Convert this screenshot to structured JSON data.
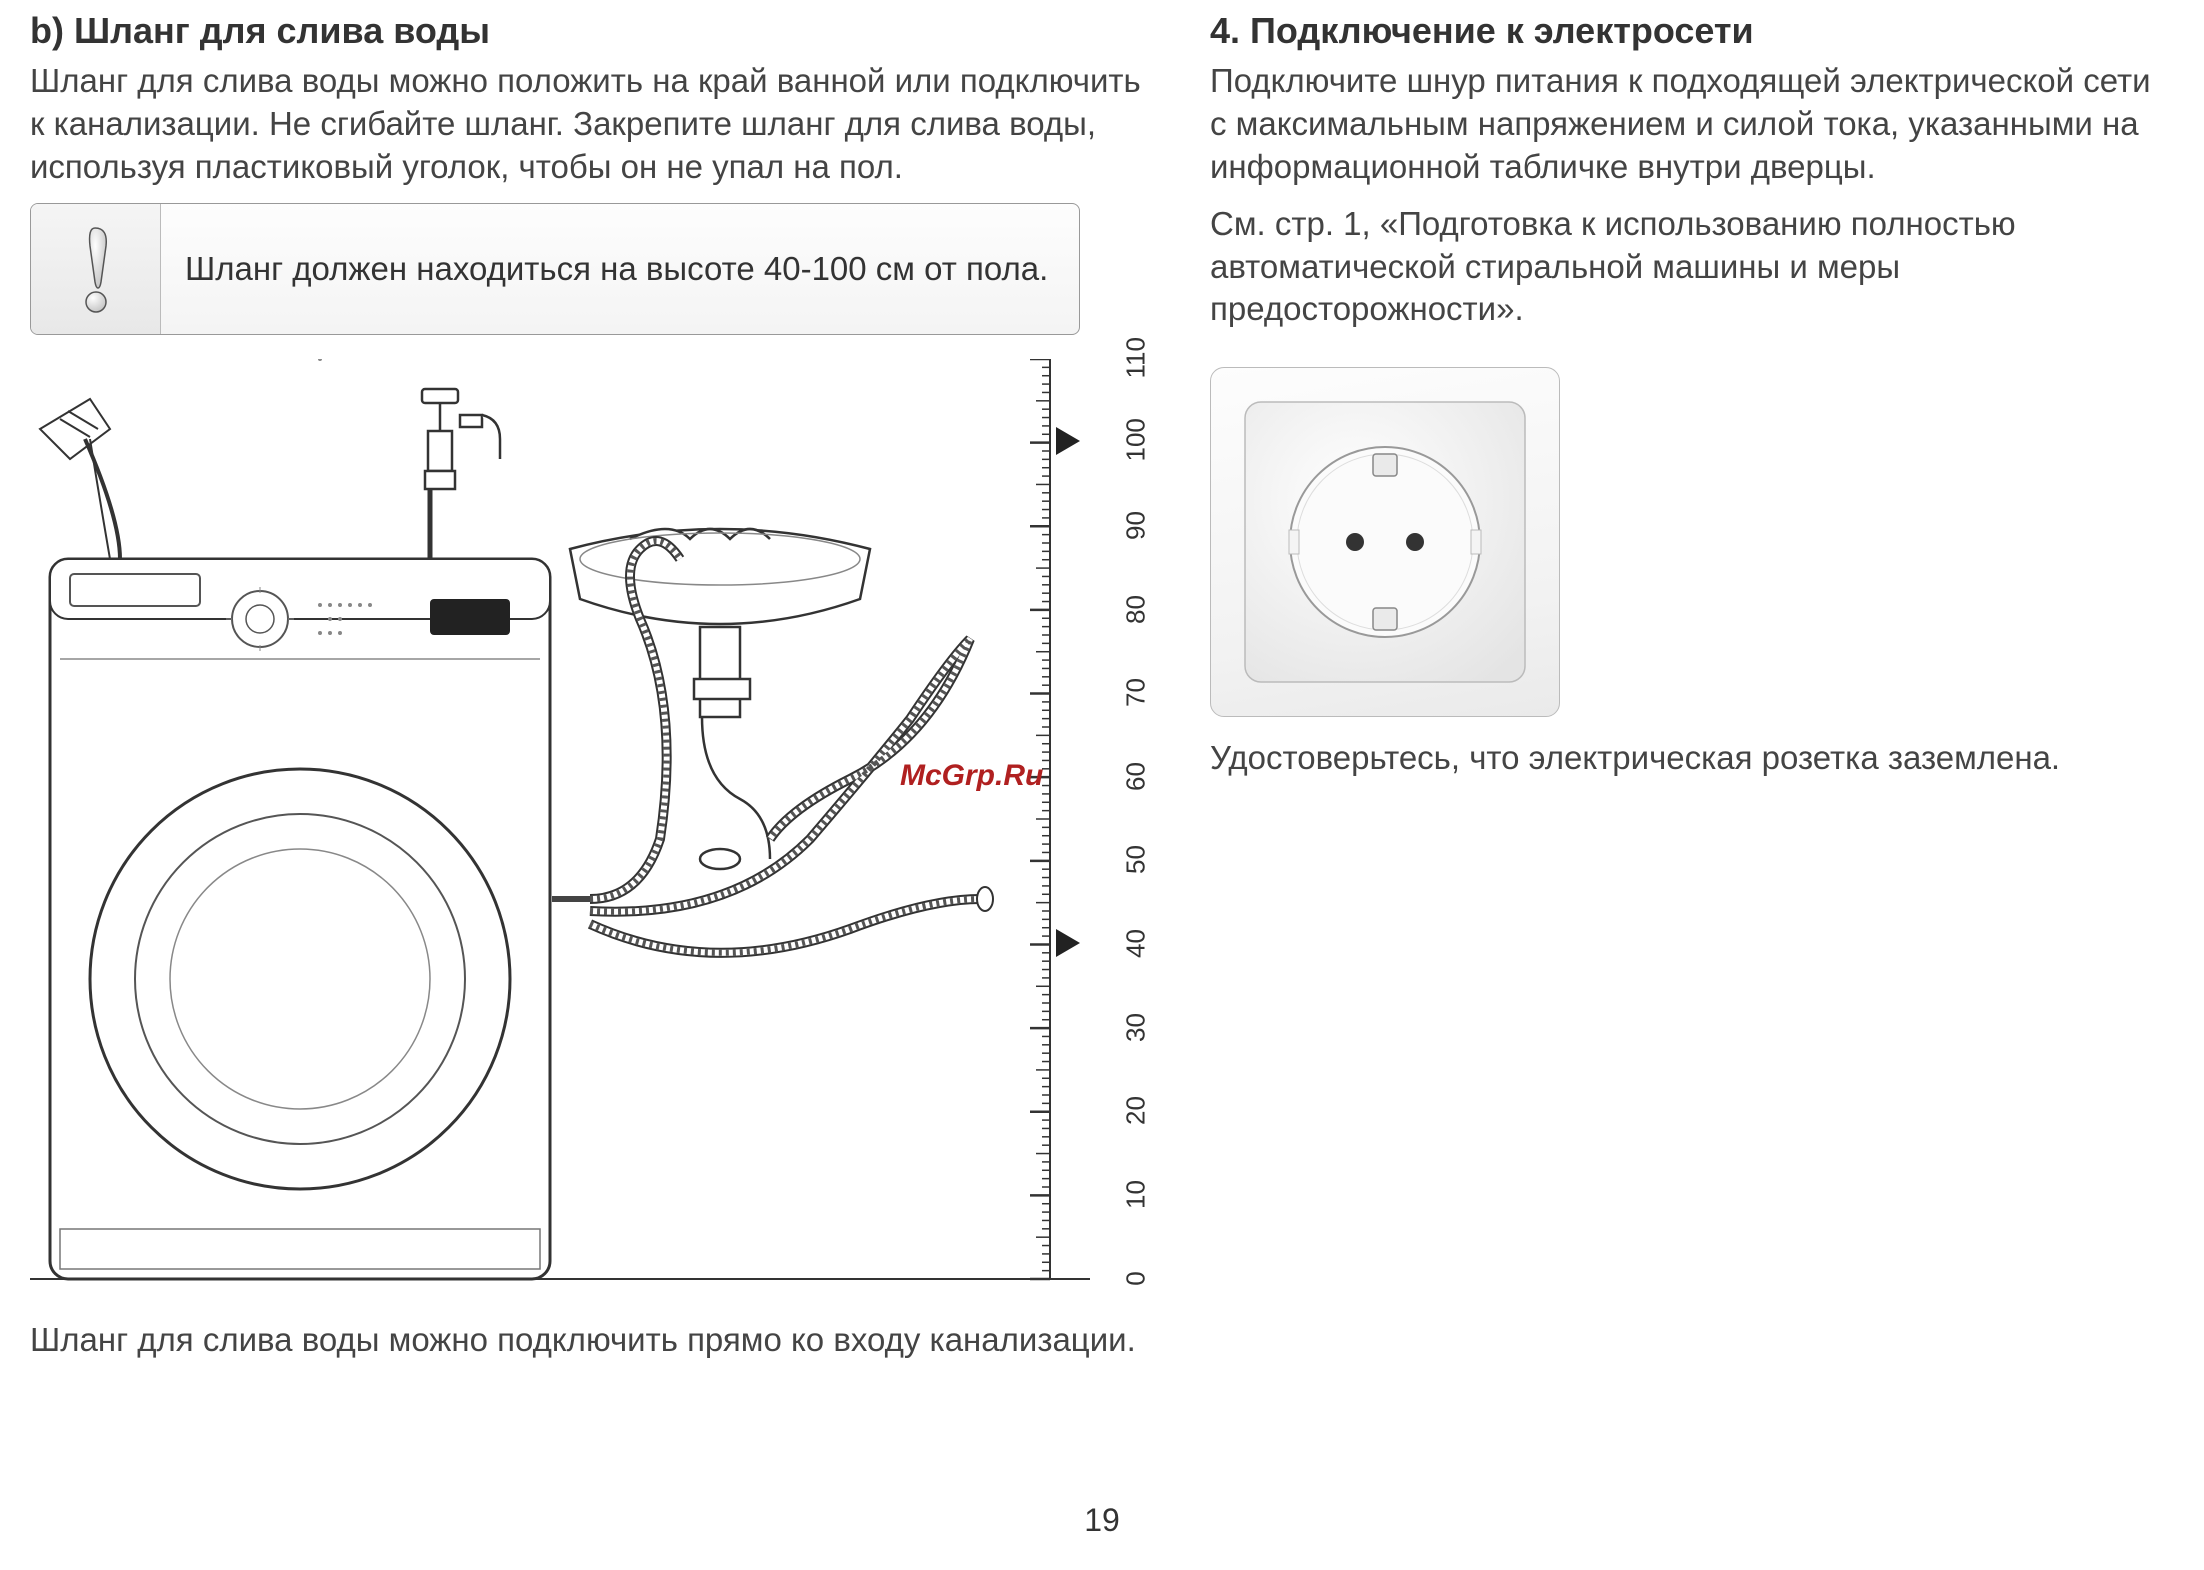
{
  "page_number": "19",
  "watermark": "McGrp.Ru",
  "left": {
    "heading_b": "b) Шланг для слива воды",
    "para_b": "Шланг для слива воды можно положить на край ванной или подключить к канализации. Не сгибайте шланг. Закрепите шланг для слива воды, используя пластиковый уголок, чтобы он не упал на пол.",
    "warning": "Шланг должен находиться на высоте 40-100 см от пола.",
    "below_diagram": "Шланг для слива воды можно подключить прямо ко входу канализации.",
    "ruler": {
      "min": 0,
      "max": 110,
      "step": 10,
      "labels": [
        "0",
        "10",
        "20",
        "30",
        "40",
        "50",
        "60",
        "70",
        "80",
        "90",
        "100",
        "110"
      ],
      "arrow_values": [
        40,
        100
      ],
      "tick_color": "#333333",
      "label_fontsize": 26
    }
  },
  "right": {
    "heading_4": "4. Подключение к электросети",
    "para_4a": "Подключите шнур питания к подходящей электрической сети с максимальным напряжением и силой тока, указанными на информационной табличке внутри дверцы.",
    "para_4b": "См. стр. 1, «Подготовка к использованию полностью автоматической стиральной машины и меры предосторожности».",
    "caption_socket": "Удостоверьтесь, что электрическая розетка заземлена."
  },
  "style": {
    "text_color": "#333333",
    "body_fontsize": 33,
    "heading_fontsize": 36,
    "watermark_color": "#b02020",
    "border_color": "#999999",
    "bg_color": "#ffffff"
  }
}
